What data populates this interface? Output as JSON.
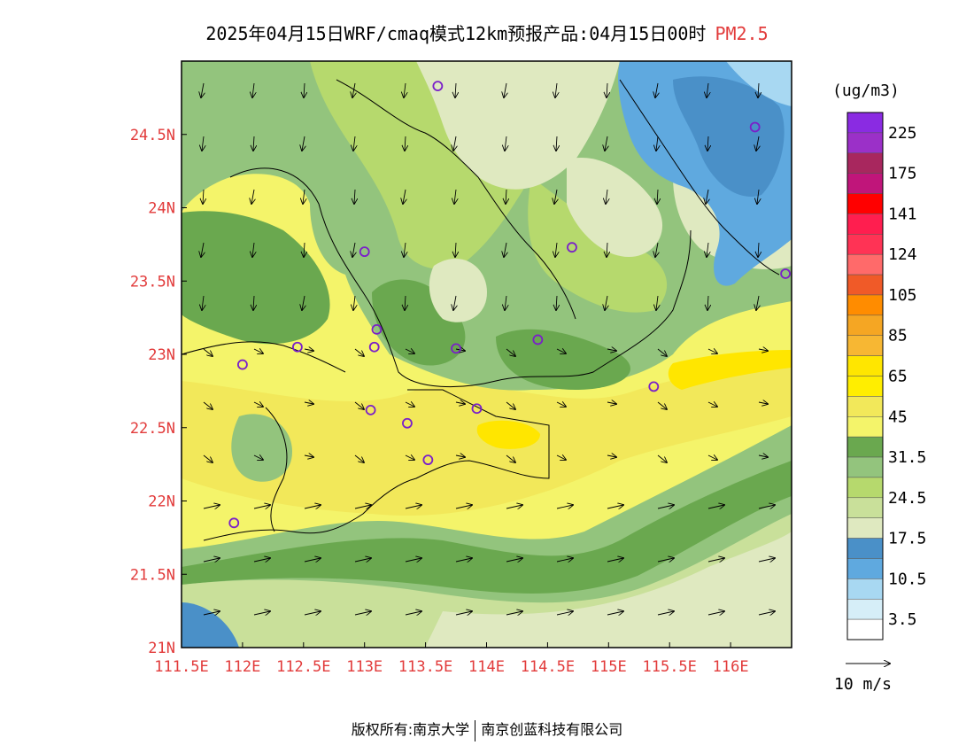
{
  "header": {
    "title": "2025年04月15日WRF/cmaq模式12km预报产品:04月15日00时",
    "species": "PM2.5"
  },
  "map": {
    "x_ticks": [
      "111.5E",
      "112E",
      "112.5E",
      "113E",
      "113.5E",
      "114E",
      "114.5E",
      "115E",
      "115.5E",
      "116E"
    ],
    "y_ticks": [
      "21N",
      "21.5N",
      "22N",
      "22.5N",
      "23N",
      "23.5N",
      "24N",
      "24.5N"
    ],
    "tick_color": "#e23b3b",
    "lon_range": [
      111.5,
      116.5
    ],
    "lat_range": [
      21.0,
      25.0
    ],
    "city_markers": [
      {
        "lon": 113.6,
        "lat": 24.83
      },
      {
        "lon": 116.2,
        "lat": 24.55
      },
      {
        "lon": 113.0,
        "lat": 23.7
      },
      {
        "lon": 114.7,
        "lat": 23.73
      },
      {
        "lon": 116.45,
        "lat": 23.55
      },
      {
        "lon": 112.45,
        "lat": 23.05
      },
      {
        "lon": 112.0,
        "lat": 22.93
      },
      {
        "lon": 113.1,
        "lat": 23.17
      },
      {
        "lon": 113.08,
        "lat": 23.05
      },
      {
        "lon": 113.75,
        "lat": 23.04
      },
      {
        "lon": 114.42,
        "lat": 23.1
      },
      {
        "lon": 113.05,
        "lat": 22.62
      },
      {
        "lon": 113.35,
        "lat": 22.53
      },
      {
        "lon": 113.92,
        "lat": 22.63
      },
      {
        "lon": 113.52,
        "lat": 22.28
      },
      {
        "lon": 115.37,
        "lat": 22.78
      },
      {
        "lon": 111.93,
        "lat": 21.85
      }
    ],
    "marker_color": "#7a1fc9"
  },
  "colorbar": {
    "unit": "(ug/m3)",
    "labels": [
      "225",
      "175",
      "141",
      "124",
      "105",
      "85",
      "65",
      "45",
      "31.5",
      "24.5",
      "17.5",
      "10.5",
      "3.5"
    ],
    "colors_top_to_bottom": [
      "#8a2be2",
      "#9b30c8",
      "#a8275e",
      "#c0157a",
      "#ff0000",
      "#ff1e4f",
      "#ff3355",
      "#ff6a6a",
      "#f05a28",
      "#ff8c00",
      "#f5a623",
      "#f7b733",
      "#ffe600",
      "#ffee00",
      "#f2e85a",
      "#f4f46a",
      "#6aa84f",
      "#93c47d",
      "#b6d96d",
      "#c9e09a",
      "#dfe9c0",
      "#4a90c8",
      "#5fa9df",
      "#a8d8f2",
      "#d6eef8",
      "#ffffff"
    ]
  },
  "wind_legend": {
    "label": "10 m/s"
  },
  "footer": {
    "copyright": "版权所有:南京大学",
    "company": "南京创蓝科技有限公司"
  }
}
